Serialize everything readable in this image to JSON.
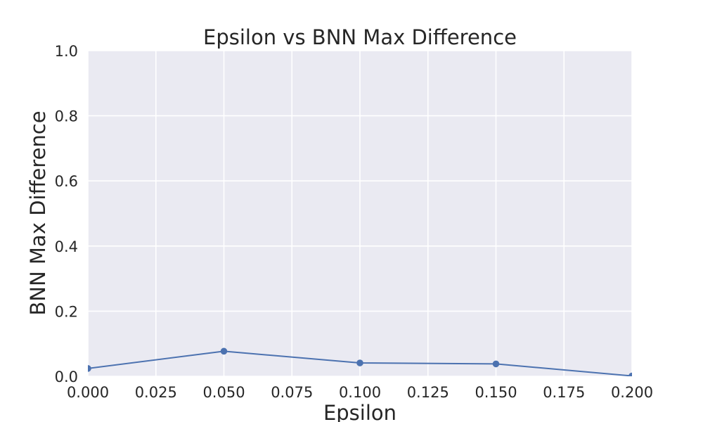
{
  "chart_data": {
    "type": "line",
    "title": "Epsilon vs BNN Max Difference",
    "xlabel": "Epsilon",
    "ylabel": "BNN Max Difference",
    "xlim": [
      0.0,
      0.2
    ],
    "ylim": [
      0.0,
      1.0
    ],
    "xticks": [
      0.0,
      0.025,
      0.05,
      0.075,
      0.1,
      0.125,
      0.15,
      0.175,
      0.2
    ],
    "xtick_labels": [
      "0.000",
      "0.025",
      "0.050",
      "0.075",
      "0.100",
      "0.125",
      "0.150",
      "0.175",
      "0.200"
    ],
    "yticks": [
      0.0,
      0.2,
      0.4,
      0.6,
      0.8,
      1.0
    ],
    "ytick_labels": [
      "0.0",
      "0.2",
      "0.4",
      "0.6",
      "0.8",
      "1.0"
    ],
    "grid": true,
    "series": [
      {
        "x": [
          0.0,
          0.05,
          0.1,
          0.15,
          0.2
        ],
        "y": [
          0.024,
          0.077,
          0.041,
          0.038,
          0.001
        ],
        "color": "#4c72b0",
        "marker": "circle"
      }
    ],
    "colors": {
      "plot_background": "#eaeaf2",
      "grid": "#ffffff",
      "text": "#262626"
    }
  }
}
